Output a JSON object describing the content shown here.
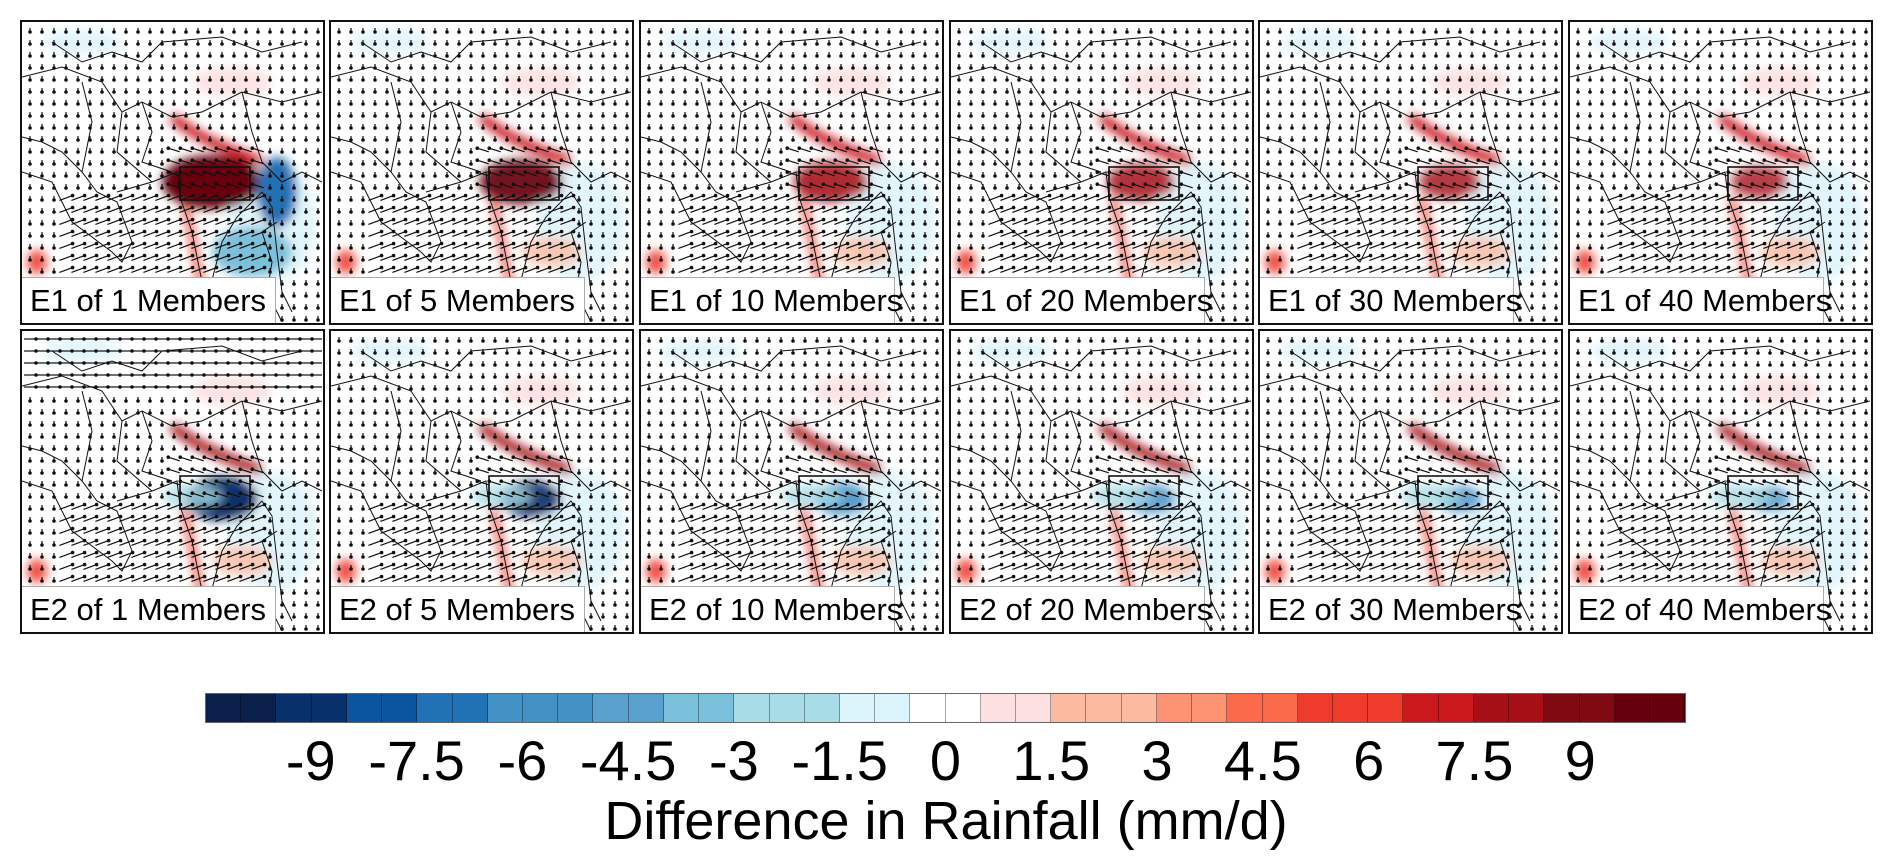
{
  "panels": [
    {
      "label": "E1 of 1 Members"
    },
    {
      "label": "E1 of 5 Members"
    },
    {
      "label": "E1 of 10 Members"
    },
    {
      "label": "E1 of 20 Members"
    },
    {
      "label": "E1 of 30 Members"
    },
    {
      "label": "E1 of 40 Members"
    },
    {
      "label": "E2 of 1 Members"
    },
    {
      "label": "E2 of 5 Members"
    },
    {
      "label": "E2 of 10 Members"
    },
    {
      "label": "E2 of 20 Members"
    },
    {
      "label": "E2 of 30 Members"
    },
    {
      "label": "E2 of 40 Members"
    }
  ],
  "colorbar": {
    "title": "Difference in Rainfall (mm/d)",
    "tick_labels": [
      "-9",
      "-7.5",
      "-6",
      "-4.5",
      "-3",
      "-1.5",
      "0",
      "1.5",
      "3",
      "4.5",
      "6",
      "7.5",
      "9"
    ],
    "colors": [
      "#0a1f4a",
      "#0a1f4a",
      "#08306b",
      "#08306b",
      "#0b559f",
      "#0b559f",
      "#2171b5",
      "#2171b5",
      "#4292c6",
      "#4292c6",
      "#4292c6",
      "#5aa0cd",
      "#5aa0cd",
      "#7bc0da",
      "#7bc0da",
      "#a8dce6",
      "#a8dce6",
      "#a8dce6",
      "#dbf3fa",
      "#dbf3fa",
      "#ffffff",
      "#ffffff",
      "#fde0e1",
      "#fde0e1",
      "#fcbba1",
      "#fcbba1",
      "#fcbba1",
      "#fc9272",
      "#fc9272",
      "#fb6a4a",
      "#fb6a4a",
      "#ef3b2c",
      "#ef3b2c",
      "#ef3b2c",
      "#cb181d",
      "#cb181d",
      "#a50f15",
      "#a50f15",
      "#7f0a12",
      "#7f0a12",
      "#67000d",
      "#67000d"
    ]
  }
}
